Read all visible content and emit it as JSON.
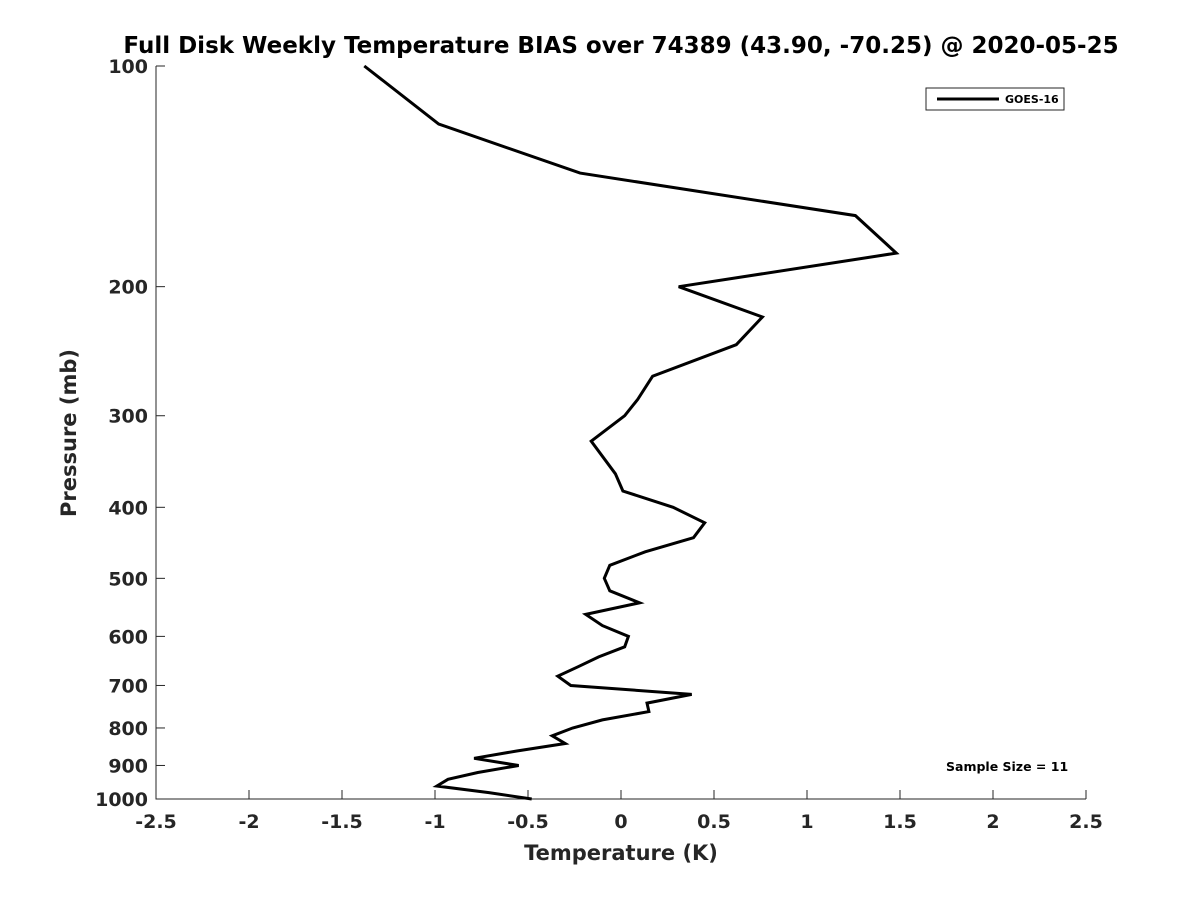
{
  "chart_data": {
    "type": "line",
    "title": "Full Disk Weekly Temperature BIAS over 74389 (43.90, -70.25) @ 2020-05-25",
    "xlabel": "Temperature (K)",
    "ylabel": "Pressure (mb)",
    "xlim": [
      -2.5,
      2.5
    ],
    "ylim": [
      100,
      1000
    ],
    "y_scale": "log",
    "y_reversed": true,
    "grid": false,
    "legend_position": "top-right",
    "x_ticks": [
      "-2.5",
      "-2",
      "-1.5",
      "-1",
      "-0.5",
      "0",
      "0.5",
      "1",
      "1.5",
      "2",
      "2.5"
    ],
    "y_ticks": [
      "100",
      "200",
      "300",
      "400",
      "500",
      "600",
      "700",
      "800",
      "900",
      "1000"
    ],
    "annotation": "Sample Size = 11",
    "series": [
      {
        "name": "GOES-16",
        "color": "#000000",
        "points": [
          {
            "t": -1.38,
            "p": 100
          },
          {
            "t": -0.98,
            "p": 120
          },
          {
            "t": -0.22,
            "p": 140
          },
          {
            "t": 1.26,
            "p": 160
          },
          {
            "t": 1.48,
            "p": 180
          },
          {
            "t": 0.31,
            "p": 200
          },
          {
            "t": 0.76,
            "p": 220
          },
          {
            "t": 0.62,
            "p": 240
          },
          {
            "t": 0.17,
            "p": 265
          },
          {
            "t": 0.09,
            "p": 285
          },
          {
            "t": 0.02,
            "p": 300
          },
          {
            "t": -0.16,
            "p": 325
          },
          {
            "t": -0.03,
            "p": 360
          },
          {
            "t": 0.01,
            "p": 380
          },
          {
            "t": 0.28,
            "p": 400
          },
          {
            "t": 0.45,
            "p": 420
          },
          {
            "t": 0.39,
            "p": 440
          },
          {
            "t": 0.13,
            "p": 460
          },
          {
            "t": -0.06,
            "p": 480
          },
          {
            "t": -0.09,
            "p": 500
          },
          {
            "t": -0.06,
            "p": 520
          },
          {
            "t": 0.1,
            "p": 540
          },
          {
            "t": -0.19,
            "p": 560
          },
          {
            "t": -0.1,
            "p": 580
          },
          {
            "t": 0.04,
            "p": 600
          },
          {
            "t": 0.02,
            "p": 620
          },
          {
            "t": -0.12,
            "p": 640
          },
          {
            "t": -0.23,
            "p": 660
          },
          {
            "t": -0.34,
            "p": 680
          },
          {
            "t": -0.27,
            "p": 700
          },
          {
            "t": 0.38,
            "p": 720
          },
          {
            "t": 0.14,
            "p": 740
          },
          {
            "t": 0.15,
            "p": 760
          },
          {
            "t": -0.1,
            "p": 780
          },
          {
            "t": -0.26,
            "p": 800
          },
          {
            "t": -0.37,
            "p": 820
          },
          {
            "t": -0.3,
            "p": 840
          },
          {
            "t": -0.56,
            "p": 860
          },
          {
            "t": -0.79,
            "p": 880
          },
          {
            "t": -0.55,
            "p": 900
          },
          {
            "t": -0.77,
            "p": 920
          },
          {
            "t": -0.93,
            "p": 940
          },
          {
            "t": -0.99,
            "p": 960
          },
          {
            "t": -0.71,
            "p": 980
          },
          {
            "t": -0.48,
            "p": 1000
          }
        ]
      }
    ]
  }
}
